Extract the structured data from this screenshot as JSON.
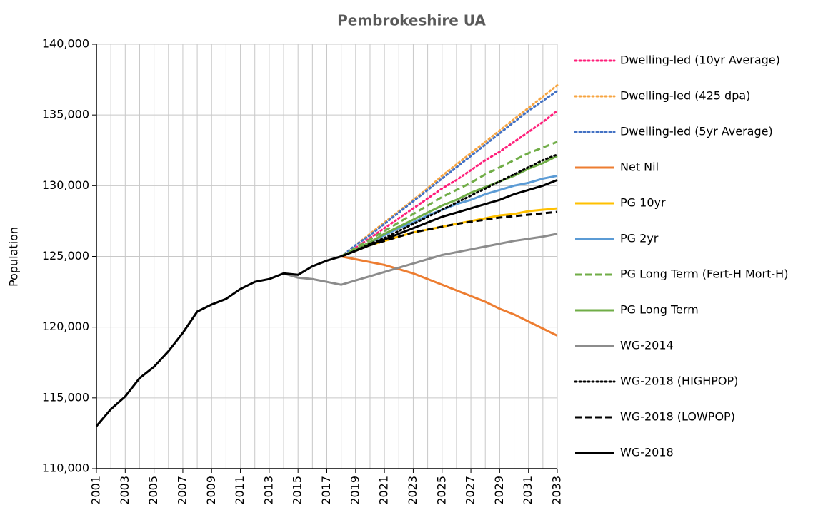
{
  "chart_data": {
    "type": "line",
    "title": "Pembrokeshire UA",
    "y_label": "Population",
    "x": [
      2001,
      2002,
      2003,
      2004,
      2005,
      2006,
      2007,
      2008,
      2009,
      2010,
      2011,
      2012,
      2013,
      2014,
      2015,
      2016,
      2017,
      2018,
      2019,
      2020,
      2021,
      2022,
      2023,
      2024,
      2025,
      2026,
      2027,
      2028,
      2029,
      2030,
      2031,
      2032,
      2033
    ],
    "xlim": [
      2001,
      2033
    ],
    "xticks": [
      2001,
      2003,
      2005,
      2007,
      2009,
      2011,
      2013,
      2015,
      2017,
      2019,
      2021,
      2023,
      2025,
      2027,
      2029,
      2031,
      2033
    ],
    "ylim": [
      110000,
      140000
    ],
    "yticks": [
      {
        "value": 110000,
        "label": "110,000"
      },
      {
        "value": 115000,
        "label": "115,000"
      },
      {
        "value": 120000,
        "label": "120,000"
      },
      {
        "value": 125000,
        "label": "125,000"
      },
      {
        "value": 130000,
        "label": "130,000"
      },
      {
        "value": 135000,
        "label": "135,000"
      },
      {
        "value": 140000,
        "label": "140,000"
      }
    ],
    "grid": true,
    "legend": "right",
    "series": [
      {
        "name": "Dwelling-led (10yr Average)",
        "color": "#ff1f7a",
        "style": "dotted",
        "values": [
          null,
          null,
          null,
          null,
          null,
          null,
          null,
          null,
          null,
          null,
          null,
          null,
          null,
          null,
          null,
          null,
          null,
          125000,
          125600,
          126300,
          127000,
          127700,
          128400,
          129100,
          129800,
          130400,
          131100,
          131800,
          132400,
          133100,
          133800,
          134500,
          135300
        ]
      },
      {
        "name": "Dwelling-led (425 dpa)",
        "color": "#f7a541",
        "style": "dotted",
        "values": [
          null,
          null,
          null,
          null,
          null,
          null,
          null,
          null,
          null,
          null,
          null,
          null,
          null,
          null,
          null,
          null,
          null,
          125000,
          125800,
          126600,
          127400,
          128200,
          129000,
          129800,
          130700,
          131500,
          132300,
          133100,
          133900,
          134700,
          135500,
          136300,
          137100
        ]
      },
      {
        "name": "Dwelling-led (5yr Average)",
        "color": "#4472c4",
        "style": "dotted",
        "values": [
          null,
          null,
          null,
          null,
          null,
          null,
          null,
          null,
          null,
          null,
          null,
          null,
          null,
          null,
          null,
          null,
          null,
          125000,
          125800,
          126500,
          127300,
          128100,
          128900,
          129700,
          130500,
          131300,
          132100,
          132900,
          133700,
          134500,
          135300,
          136000,
          136700
        ]
      },
      {
        "name": "Net Nil",
        "color": "#ed7d31",
        "style": "solid",
        "values": [
          null,
          null,
          null,
          null,
          null,
          null,
          null,
          null,
          null,
          null,
          null,
          null,
          null,
          null,
          null,
          null,
          null,
          125000,
          124800,
          124600,
          124400,
          124100,
          123800,
          123400,
          123000,
          122600,
          122200,
          121800,
          121300,
          120900,
          120400,
          119900,
          119400
        ]
      },
      {
        "name": "PG 10yr",
        "color": "#ffc000",
        "style": "solid",
        "values": [
          null,
          null,
          null,
          null,
          null,
          null,
          null,
          null,
          null,
          null,
          null,
          null,
          null,
          null,
          null,
          null,
          null,
          125000,
          125400,
          125800,
          126100,
          126400,
          126700,
          126900,
          127100,
          127300,
          127500,
          127700,
          127900,
          128000,
          128200,
          128300,
          128400
        ]
      },
      {
        "name": "PG 2yr",
        "color": "#5b9bd5",
        "style": "solid",
        "values": [
          null,
          null,
          null,
          null,
          null,
          null,
          null,
          null,
          null,
          null,
          null,
          null,
          null,
          null,
          null,
          null,
          null,
          125000,
          125500,
          126000,
          126500,
          127000,
          127400,
          127900,
          128300,
          128700,
          129000,
          129400,
          129700,
          130000,
          130200,
          130500,
          130700
        ]
      },
      {
        "name": "PG Long Term (Fert-H Mort-H)",
        "color": "#70ad47",
        "style": "dashed",
        "values": [
          null,
          null,
          null,
          null,
          null,
          null,
          null,
          null,
          null,
          null,
          null,
          null,
          null,
          null,
          null,
          null,
          null,
          125000,
          125600,
          126200,
          126800,
          127400,
          128000,
          128600,
          129200,
          129700,
          130200,
          130800,
          131300,
          131800,
          132300,
          132700,
          133100
        ]
      },
      {
        "name": "PG Long Term",
        "color": "#70ad47",
        "style": "solid",
        "values": [
          null,
          null,
          null,
          null,
          null,
          null,
          null,
          null,
          null,
          null,
          null,
          null,
          null,
          null,
          null,
          null,
          null,
          125000,
          125500,
          126000,
          126600,
          127100,
          127600,
          128100,
          128600,
          129000,
          129500,
          129900,
          130300,
          130700,
          131200,
          131600,
          132100
        ]
      },
      {
        "name": "WG-2014",
        "color": "#8c8c8c",
        "style": "solid",
        "values": [
          null,
          null,
          null,
          null,
          null,
          null,
          null,
          null,
          null,
          null,
          null,
          null,
          null,
          123800,
          123500,
          123400,
          123200,
          123000,
          123300,
          123600,
          123900,
          124200,
          124500,
          124800,
          125100,
          125300,
          125500,
          125700,
          125900,
          126100,
          126250,
          126400,
          126600
        ]
      },
      {
        "name": "WG-2018 (HIGHPOP)",
        "color": "#000000",
        "style": "dotted",
        "values": [
          null,
          null,
          null,
          null,
          null,
          null,
          null,
          null,
          null,
          null,
          null,
          null,
          null,
          null,
          null,
          null,
          null,
          125000,
          125400,
          125900,
          126300,
          126800,
          127300,
          127800,
          128300,
          128800,
          129300,
          129800,
          130300,
          130800,
          131300,
          131800,
          132200
        ]
      },
      {
        "name": "WG-2018 (LOWPOP)",
        "color": "#000000",
        "style": "dashed",
        "values": [
          null,
          null,
          null,
          null,
          null,
          null,
          null,
          null,
          null,
          null,
          null,
          null,
          null,
          null,
          null,
          null,
          null,
          125000,
          125400,
          125800,
          126100,
          126400,
          126700,
          126900,
          127100,
          127300,
          127450,
          127600,
          127750,
          127850,
          127950,
          128050,
          128150
        ]
      },
      {
        "name": "WG-2018",
        "color": "#000000",
        "style": "solid",
        "values": [
          113000,
          114200,
          115100,
          116400,
          117200,
          118300,
          119600,
          121100,
          121600,
          122000,
          122700,
          123200,
          123400,
          123800,
          123700,
          124300,
          124700,
          125000,
          125400,
          125800,
          126200,
          126600,
          127000,
          127400,
          127800,
          128100,
          128400,
          128700,
          129000,
          129400,
          129700,
          130000,
          130400
        ]
      }
    ]
  }
}
